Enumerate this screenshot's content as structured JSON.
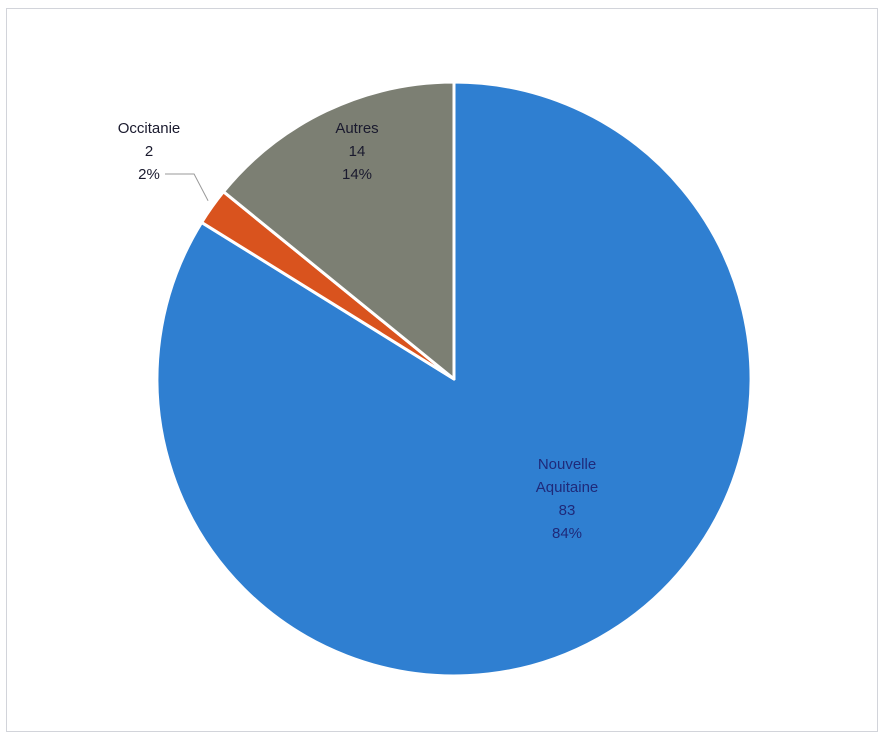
{
  "chart_data": {
    "type": "pie",
    "slices": [
      {
        "name": "Nouvelle Aquitaine",
        "label_lines": [
          "Nouvelle",
          "Aquitaine"
        ],
        "value": 83,
        "percent_label": "84%",
        "color": "#2f7fd1",
        "label_color": "#1f2a7a"
      },
      {
        "name": "Occitanie",
        "label_lines": [
          "Occitanie"
        ],
        "value": 2,
        "percent_label": "2%",
        "color": "#d9531e",
        "label_color": "#1a1a2e"
      },
      {
        "name": "Autres",
        "label_lines": [
          "Autres"
        ],
        "value": 14,
        "percent_label": "14%",
        "color": "#7c7f73",
        "label_color": "#1a1a2e"
      }
    ],
    "start": "12 o'clock",
    "direction": "clockwise",
    "legend": "none",
    "leader_lines": [
      "Occitanie"
    ]
  }
}
